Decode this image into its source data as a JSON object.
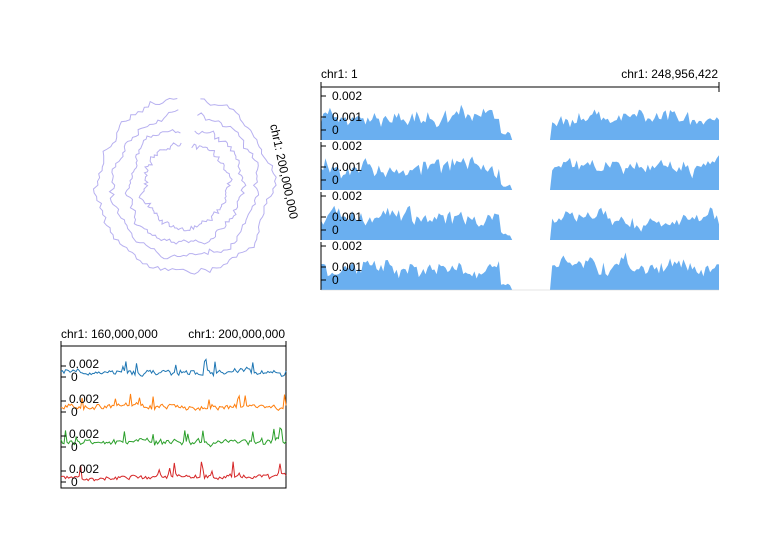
{
  "chart_data": [
    {
      "id": "circular",
      "type": "line",
      "layout": "circular",
      "region_label": "chr1: 200,000,000",
      "tracks": 4,
      "colors": [
        "#b7b0f0",
        "#b7b0f0",
        "#b7b0f0",
        "#b7b0f0"
      ]
    },
    {
      "id": "overview",
      "type": "area",
      "start_label": "chr1: 1",
      "end_label": "chr1: 248,956,422",
      "x_range": [
        1,
        248956422
      ],
      "ylim": [
        0,
        0.0025
      ],
      "y_ticks": [
        "0.002",
        "0.001",
        "0"
      ],
      "color": "#6aaff0",
      "gap_range": [
        121000000,
        143000000
      ],
      "tracks": 4
    },
    {
      "id": "zoom",
      "type": "line",
      "start_label": "chr1: 160,000,000",
      "end_label": "chr1: 200,000,000",
      "x_range": [
        160000000,
        200000000
      ],
      "y_ticks": [
        "0.002",
        "0"
      ],
      "colors": [
        "#1f77b4",
        "#ff7f0e",
        "#2ca02c",
        "#d62728"
      ],
      "tracks": 4
    }
  ]
}
